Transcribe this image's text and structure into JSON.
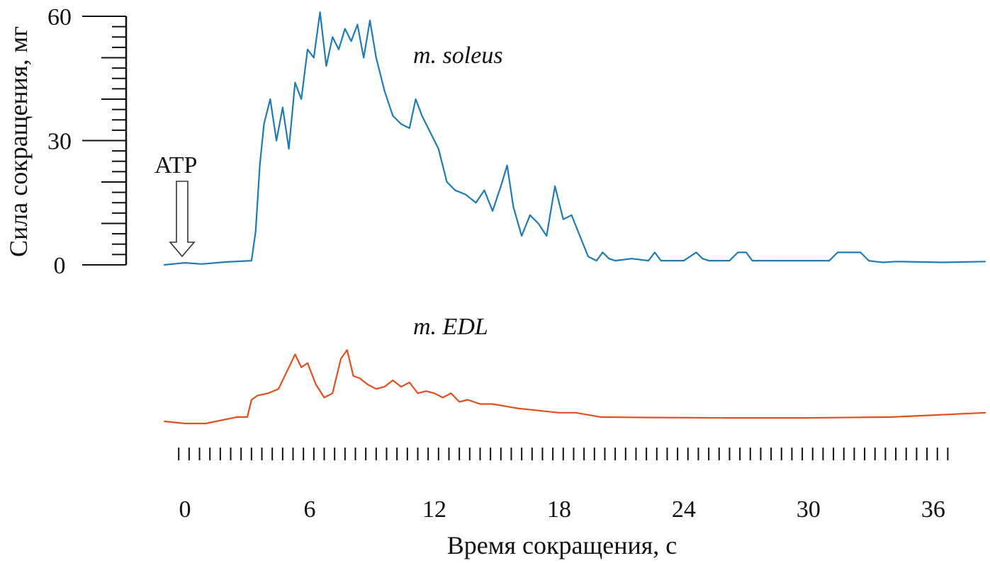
{
  "chart_data": {
    "type": "line",
    "xlabel": "Время сокращения, с",
    "ylabel": "Сила сокращения, мг",
    "xlim": [
      -2,
      38.5
    ],
    "ylim": [
      0,
      60
    ],
    "x_ticks": [
      "0",
      "6",
      "12",
      "18",
      "24",
      "30",
      "36"
    ],
    "y_ticks": [
      "0",
      "30",
      "60"
    ],
    "grid": false,
    "annotation": {
      "text": "ATP",
      "x": 0
    },
    "series": [
      {
        "name": "m. soleus",
        "color": "#1f7bb6",
        "x": [
          -1,
          0,
          0.8,
          2,
          3.2,
          3.4,
          3.6,
          3.8,
          4.1,
          4.4,
          4.7,
          5.0,
          5.3,
          5.6,
          5.9,
          6.2,
          6.5,
          6.8,
          7.1,
          7.4,
          7.7,
          8.0,
          8.3,
          8.6,
          8.9,
          9.2,
          9.6,
          10.0,
          10.4,
          10.8,
          11.1,
          11.4,
          11.8,
          12.2,
          12.6,
          13.0,
          13.5,
          14.0,
          14.4,
          14.8,
          15.2,
          15.5,
          15.8,
          16.2,
          16.6,
          17.0,
          17.4,
          17.8,
          18.2,
          18.6,
          19.0,
          19.4,
          19.8,
          20.1,
          20.4,
          20.7,
          21.5,
          22.3,
          22.6,
          22.9,
          24.0,
          24.6,
          24.9,
          25.2,
          26.2,
          26.6,
          27.0,
          27.3,
          28.5,
          31.0,
          31.4,
          31.8,
          32.5,
          32.9,
          33.2,
          33.6,
          34.2,
          36.5,
          38.5
        ],
        "y": [
          0,
          0.5,
          0.2,
          0.7,
          1,
          8,
          24,
          34,
          40,
          30,
          38,
          28,
          44,
          40,
          52,
          50,
          61,
          48,
          55,
          52,
          57,
          54,
          58,
          50,
          59,
          50,
          42,
          36,
          34,
          33,
          40,
          36,
          32,
          28,
          20,
          18,
          17,
          15,
          18,
          13,
          19,
          24,
          14,
          7,
          12,
          10,
          7,
          19,
          11,
          12,
          7,
          2,
          1,
          3,
          1.5,
          1,
          1.5,
          1,
          3,
          1,
          1,
          3,
          1.5,
          1,
          1,
          3,
          3,
          1,
          1,
          1,
          3,
          3,
          3,
          1,
          0.8,
          0.6,
          0.8,
          0.6,
          0.8
        ]
      },
      {
        "name": "m. EDL",
        "color": "#e0501e",
        "x": [
          -1,
          0,
          1,
          2.5,
          3.0,
          3.2,
          3.5,
          4.0,
          4.5,
          4.9,
          5.3,
          5.6,
          5.9,
          6.3,
          6.7,
          7.1,
          7.5,
          7.8,
          8.1,
          8.4,
          8.8,
          9.2,
          9.6,
          10.0,
          10.4,
          10.8,
          11.2,
          11.6,
          12.0,
          12.4,
          12.8,
          13.2,
          13.6,
          14.2,
          14.8,
          15.4,
          16.0,
          17.0,
          18.0,
          18.8,
          19.4,
          20.0,
          22.0,
          26.0,
          30.0,
          34.0,
          38.5
        ],
        "y": [
          0.5,
          0,
          0,
          1.5,
          1.5,
          5.5,
          6.5,
          7,
          8,
          12,
          16,
          13,
          14,
          9,
          6,
          7,
          15,
          17,
          11,
          10.5,
          9,
          8,
          8.5,
          10,
          8.5,
          9.5,
          7,
          7.5,
          7,
          6,
          7,
          5,
          5.5,
          4.5,
          4.5,
          4,
          3.5,
          3,
          2.5,
          2.5,
          2,
          1.5,
          1.4,
          1.3,
          1.3,
          1.5,
          2.5
        ]
      }
    ]
  }
}
